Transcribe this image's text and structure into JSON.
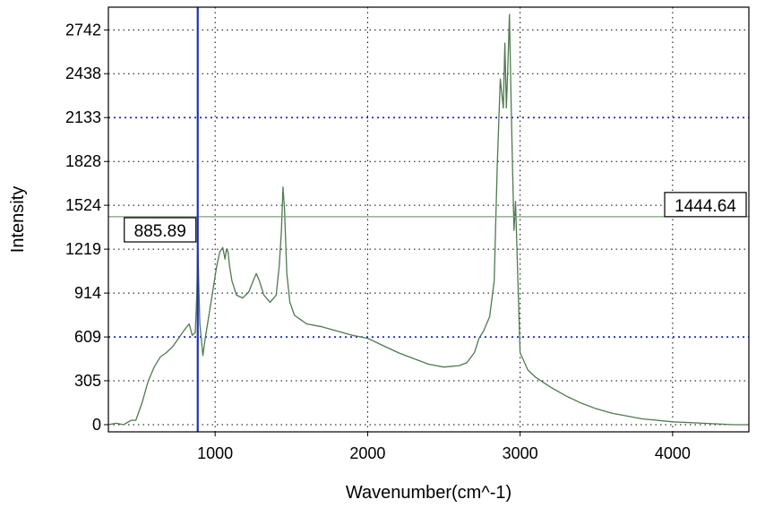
{
  "chart_data": {
    "type": "line",
    "title": "",
    "xlabel": "Wavenumber(cm^-1)",
    "ylabel": "Intensity",
    "xlim": [
      300,
      4500
    ],
    "ylim": [
      -50,
      2900
    ],
    "x_ticks": [
      1000,
      2000,
      3000,
      4000
    ],
    "y_ticks": [
      0,
      305,
      609,
      914,
      1219,
      1524,
      1828,
      2133,
      2438,
      2742
    ],
    "grid": true,
    "highlighted_gridlines_y": [
      609,
      2133
    ],
    "series": [
      {
        "color": "#4f7a4f",
        "x": [
          300,
          350,
          400,
          450,
          480,
          520,
          560,
          600,
          640,
          680,
          720,
          760,
          800,
          830,
          850,
          870,
          880,
          886,
          892,
          900,
          920,
          935,
          950,
          980,
          1010,
          1030,
          1050,
          1065,
          1075,
          1085,
          1095,
          1110,
          1140,
          1180,
          1220,
          1250,
          1270,
          1290,
          1320,
          1360,
          1400,
          1420,
          1435,
          1445,
          1455,
          1470,
          1490,
          1520,
          1560,
          1600,
          1700,
          1800,
          1900,
          2000,
          2100,
          2200,
          2300,
          2400,
          2500,
          2600,
          2650,
          2700,
          2730,
          2760,
          2800,
          2830,
          2850,
          2870,
          2880,
          2890,
          2900,
          2910,
          2920,
          2930,
          2940,
          2950,
          2960,
          2970,
          2980,
          3000,
          3050,
          3100,
          3200,
          3300,
          3400,
          3500,
          3600,
          3800,
          4000,
          4200,
          4400,
          4500
        ],
        "y": [
          0,
          10,
          0,
          30,
          30,
          150,
          300,
          400,
          470,
          500,
          540,
          600,
          660,
          700,
          620,
          640,
          900,
          1250,
          1000,
          700,
          480,
          600,
          700,
          900,
          1100,
          1200,
          1230,
          1150,
          1220,
          1200,
          1100,
          1000,
          900,
          880,
          920,
          1000,
          1050,
          1000,
          900,
          850,
          900,
          1100,
          1350,
          1650,
          1500,
          1050,
          850,
          760,
          730,
          700,
          680,
          650,
          620,
          600,
          550,
          500,
          460,
          420,
          400,
          410,
          430,
          500,
          600,
          650,
          750,
          1000,
          1800,
          2400,
          2300,
          2200,
          2650,
          2200,
          2500,
          2850,
          2300,
          1800,
          1350,
          1550,
          1200,
          500,
          380,
          330,
          260,
          200,
          150,
          110,
          80,
          40,
          20,
          10,
          0,
          0
        ]
      }
    ],
    "cursors": {
      "vertical": {
        "x": 885.89,
        "label": "885.89",
        "color": "#1f2fb3"
      },
      "horizontal": {
        "y": 1444.64,
        "label": "1444.64",
        "color": "#7f9f7f"
      }
    }
  }
}
